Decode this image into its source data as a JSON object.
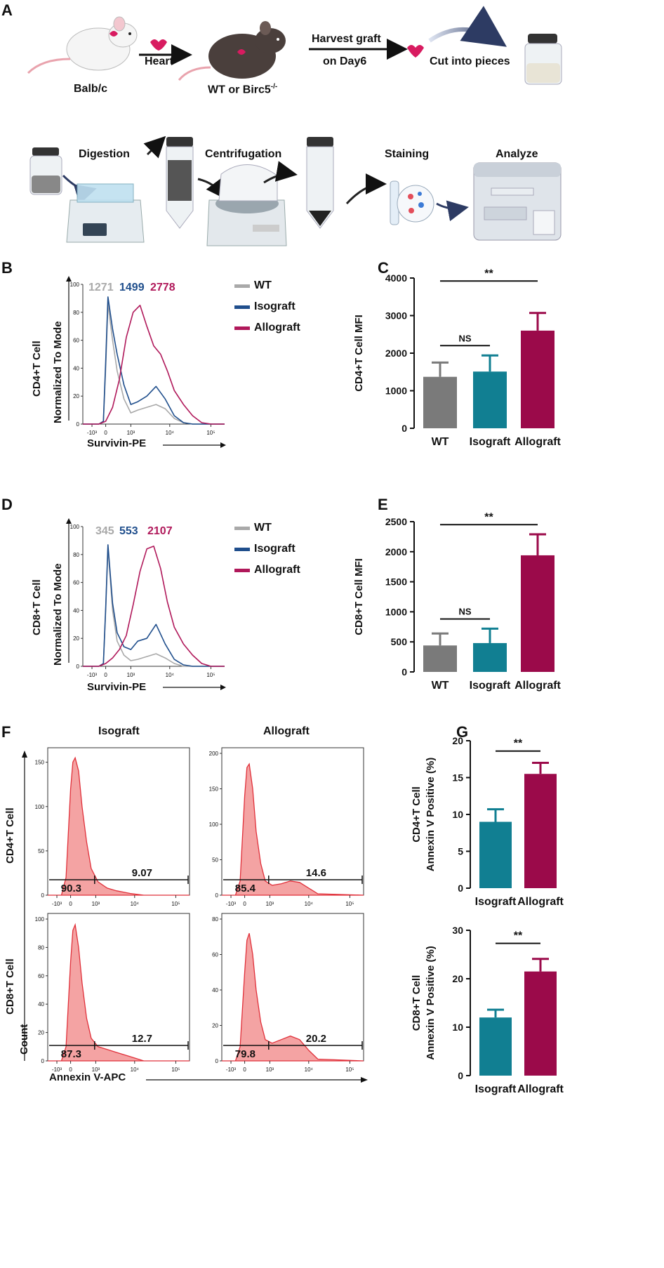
{
  "panel_labels": {
    "A": "A",
    "B": "B",
    "C": "C",
    "D": "D",
    "E": "E",
    "F": "F",
    "G": "G"
  },
  "workflow": {
    "balbc": "Balb/c",
    "heart": "Heart",
    "recipient": "WT or Birc5",
    "recipient_sup": "-/-",
    "harvest_line1": "Harvest graft",
    "harvest_line2": "on Day6",
    "cut": "Cut into pieces",
    "digestion": "Digestion",
    "centrifugation": "Centrifugation",
    "staining": "Staining",
    "analyze": "Analyze"
  },
  "colors": {
    "wt": "#a9a9a9",
    "isograft": "#1f4e8c",
    "allograft": "#b0185a",
    "bar_wt": "#7a7a7a",
    "bar_iso": "#117f92",
    "bar_allo": "#9b0a4a",
    "hist_fill": "#f4a3a3",
    "hist_line": "#e0303a"
  },
  "panel_b": {
    "ylabel_cell": "CD4+T Cell",
    "ylabel": "Normalized To Mode",
    "xlabel": "Survivin-PE",
    "mfi": {
      "wt": "1271",
      "iso": "1499",
      "allo": "2778"
    },
    "legend": {
      "wt": "WT",
      "iso": "Isograft",
      "allo": "Allograft"
    }
  },
  "panel_d": {
    "ylabel_cell": "CD8+T Cell",
    "ylabel": "Normalized To Mode",
    "xlabel": "Survivin-PE",
    "mfi": {
      "wt": "345",
      "iso": "553",
      "allo": "2107"
    },
    "legend": {
      "wt": "WT",
      "iso": "Isograft",
      "allo": "Allograft"
    }
  },
  "panel_f": {
    "col_iso": "Isograft",
    "col_allo": "Allograft",
    "row_cd4": "CD4+T Cell",
    "row_cd8": "CD8+T Cell",
    "ylabel": "Count",
    "xlabel": "Annexin V-APC",
    "gates": {
      "cd4_iso": [
        "90.3",
        "9.07"
      ],
      "cd4_allo": [
        "85.4",
        "14.6"
      ],
      "cd8_iso": [
        "87.3",
        "12.7"
      ],
      "cd8_allo": [
        "79.8",
        "20.2"
      ]
    }
  },
  "chart_data": [
    {
      "id": "B",
      "type": "line",
      "title": "",
      "xlabel": "Survivin-PE",
      "ylabel": "Normalized To Mode",
      "y_ticks": [
        "0",
        "20",
        "40",
        "60",
        "80",
        "100"
      ],
      "x_ticks": [
        "-10³",
        "0",
        "10³",
        "10⁴",
        "10⁵"
      ],
      "x_range": [
        -1,
        5.2
      ],
      "ylim": [
        0,
        100
      ],
      "series": [
        {
          "name": "WT",
          "x": [
            -1,
            -0.3,
            -0.1,
            0,
            0.1,
            0.3,
            0.5,
            0.8,
            1.1,
            1.4,
            1.8,
            2.2,
            2.6,
            3.0,
            3.4,
            3.8,
            4.2,
            5.2
          ],
          "values": [
            0,
            0,
            2,
            40,
            86,
            60,
            38,
            18,
            8,
            10,
            12,
            14,
            11,
            4,
            1,
            0,
            0,
            0
          ]
        },
        {
          "name": "Isograft",
          "x": [
            -1,
            -0.3,
            -0.1,
            0,
            0.1,
            0.3,
            0.5,
            0.8,
            1.1,
            1.4,
            1.8,
            2.2,
            2.6,
            3.0,
            3.4,
            3.8,
            4.2,
            5.2
          ],
          "values": [
            0,
            0,
            2,
            45,
            91,
            68,
            50,
            28,
            14,
            16,
            20,
            27,
            18,
            6,
            1,
            0,
            0,
            0
          ]
        },
        {
          "name": "Allograft",
          "x": [
            -1,
            -0.3,
            0,
            0.3,
            0.6,
            0.9,
            1.2,
            1.5,
            1.8,
            2.1,
            2.4,
            2.7,
            3.0,
            3.4,
            3.8,
            4.2,
            4.6,
            5.2
          ],
          "values": [
            0,
            0,
            2,
            12,
            32,
            62,
            80,
            85,
            70,
            56,
            50,
            38,
            24,
            14,
            6,
            1,
            0,
            0
          ]
        }
      ]
    },
    {
      "id": "C",
      "type": "bar",
      "title": "",
      "xlabel": "",
      "ylabel": "CD4+T Cell MFI",
      "categories": [
        "WT",
        "Isograft",
        "Allograft"
      ],
      "values": [
        1370,
        1510,
        2600
      ],
      "errors": [
        380,
        430,
        470
      ],
      "ylim": [
        0,
        4000
      ],
      "y_ticks": [
        "0",
        "1000",
        "2000",
        "3000",
        "4000"
      ],
      "annotations": [
        {
          "from": 0,
          "to": 1,
          "label": "NS",
          "y": 2200
        },
        {
          "from": 0,
          "to": 2,
          "label": "**",
          "y": 3920
        }
      ]
    },
    {
      "id": "D",
      "type": "line",
      "title": "",
      "xlabel": "Survivin-PE",
      "ylabel": "Normalized To Mode",
      "y_ticks": [
        "0",
        "20",
        "40",
        "60",
        "80",
        "100"
      ],
      "x_ticks": [
        "-10³",
        "0",
        "10³",
        "10⁴",
        "10⁵"
      ],
      "x_range": [
        -1,
        5.2
      ],
      "ylim": [
        0,
        100
      ],
      "series": [
        {
          "name": "WT",
          "x": [
            -1,
            -0.3,
            -0.1,
            0,
            0.1,
            0.3,
            0.5,
            0.8,
            1.1,
            1.4,
            1.8,
            2.2,
            2.6,
            3.0,
            3.4,
            3.8,
            5.2
          ],
          "values": [
            0,
            0,
            2,
            40,
            85,
            40,
            18,
            8,
            4,
            5,
            7,
            9,
            6,
            2,
            0,
            0,
            0
          ]
        },
        {
          "name": "Isograft",
          "x": [
            -1,
            -0.3,
            -0.1,
            0,
            0.1,
            0.3,
            0.5,
            0.8,
            1.1,
            1.4,
            1.8,
            2.2,
            2.6,
            3.0,
            3.4,
            3.8,
            5.2
          ],
          "values": [
            0,
            0,
            2,
            42,
            87,
            45,
            24,
            14,
            12,
            18,
            20,
            30,
            16,
            5,
            1,
            0,
            0
          ]
        },
        {
          "name": "Allograft",
          "x": [
            -1,
            -0.3,
            0,
            0.3,
            0.6,
            0.9,
            1.2,
            1.5,
            1.8,
            2.1,
            2.4,
            2.7,
            3.0,
            3.4,
            3.8,
            4.2,
            4.6,
            5.2
          ],
          "values": [
            0,
            0,
            2,
            6,
            12,
            22,
            44,
            68,
            84,
            86,
            70,
            46,
            28,
            16,
            8,
            2,
            0,
            0
          ]
        }
      ]
    },
    {
      "id": "E",
      "type": "bar",
      "title": "",
      "xlabel": "",
      "ylabel": "CD8+T Cell MFI",
      "categories": [
        "WT",
        "Isograft",
        "Allograft"
      ],
      "values": [
        440,
        480,
        1940
      ],
      "errors": [
        200,
        240,
        350
      ],
      "ylim": [
        0,
        2500
      ],
      "y_ticks": [
        "0",
        "500",
        "1000",
        "1500",
        "2000",
        "2500"
      ],
      "annotations": [
        {
          "from": 0,
          "to": 1,
          "label": "NS",
          "y": 880
        },
        {
          "from": 0,
          "to": 2,
          "label": "**",
          "y": 2450
        }
      ]
    },
    {
      "id": "F",
      "type": "area",
      "title": "",
      "xlabel": "Annexin V-APC",
      "ylabel": "Count",
      "x_ticks": [
        "-10³",
        "0",
        "10³",
        "10⁴",
        "10⁵"
      ],
      "x_range": [
        -1,
        5.2
      ],
      "plots": [
        {
          "name": "CD4+T Cell Isograft",
          "ylim": [
            0,
            160
          ],
          "y_ticks": [
            "0",
            "50",
            "100",
            "150"
          ],
          "x": [
            -1,
            -0.4,
            -0.2,
            0,
            0.1,
            0.2,
            0.35,
            0.5,
            0.7,
            0.9,
            1.2,
            1.6,
            2.0,
            2.6,
            3.2,
            5.2
          ],
          "values": [
            0,
            0,
            20,
            120,
            150,
            155,
            140,
            100,
            60,
            30,
            15,
            8,
            5,
            2,
            0,
            0
          ]
        },
        {
          "name": "CD4+T Cell Allograft",
          "ylim": [
            0,
            200
          ],
          "y_ticks": [
            "0",
            "50",
            "100",
            "150",
            "200"
          ],
          "x": [
            -1,
            -0.4,
            -0.2,
            0,
            0.1,
            0.2,
            0.35,
            0.5,
            0.7,
            0.9,
            1.2,
            1.6,
            2.0,
            2.4,
            2.8,
            3.2,
            5.2
          ],
          "values": [
            0,
            0,
            20,
            140,
            180,
            185,
            150,
            90,
            45,
            20,
            14,
            16,
            20,
            18,
            10,
            2,
            0
          ]
        },
        {
          "name": "CD8+T Cell Isograft",
          "ylim": [
            0,
            100
          ],
          "y_ticks": [
            "0",
            "20",
            "40",
            "60",
            "80",
            "100"
          ],
          "x": [
            -1,
            -0.4,
            -0.2,
            0,
            0.1,
            0.2,
            0.35,
            0.5,
            0.7,
            0.9,
            1.2,
            1.6,
            2.0,
            2.6,
            3.2,
            5.2
          ],
          "values": [
            0,
            0,
            10,
            70,
            92,
            96,
            80,
            55,
            30,
            16,
            10,
            8,
            6,
            3,
            0,
            0
          ]
        },
        {
          "name": "CD8+T Cell Allograft",
          "ylim": [
            0,
            80
          ],
          "y_ticks": [
            "0",
            "20",
            "40",
            "60",
            "80"
          ],
          "x": [
            -1,
            -0.4,
            -0.2,
            0,
            0.1,
            0.2,
            0.35,
            0.5,
            0.7,
            0.9,
            1.2,
            1.6,
            2.0,
            2.4,
            2.8,
            3.2,
            5.2
          ],
          "values": [
            0,
            0,
            8,
            50,
            68,
            72,
            60,
            40,
            22,
            12,
            10,
            12,
            14,
            12,
            6,
            1,
            0
          ]
        }
      ]
    },
    {
      "id": "G1",
      "type": "bar",
      "title": "",
      "xlabel": "",
      "ylabel": "CD4+T Cell Annexin V Positive (%)",
      "categories": [
        "Isograft",
        "Allograft"
      ],
      "values": [
        9.0,
        15.5
      ],
      "errors": [
        1.7,
        1.5
      ],
      "ylim": [
        0,
        20
      ],
      "y_ticks": [
        "0",
        "5",
        "10",
        "15",
        "20"
      ],
      "annotations": [
        {
          "from": 0,
          "to": 1,
          "label": "**",
          "y": 18.6
        }
      ]
    },
    {
      "id": "G2",
      "type": "bar",
      "title": "",
      "xlabel": "",
      "ylabel": "CD8+T Cell Annexin V Positive (%)",
      "categories": [
        "Isograft",
        "Allograft"
      ],
      "values": [
        12.0,
        21.5
      ],
      "errors": [
        1.6,
        2.6
      ],
      "ylim": [
        0,
        30
      ],
      "y_ticks": [
        "0",
        "10",
        "20",
        "30"
      ],
      "annotations": [
        {
          "from": 0,
          "to": 1,
          "label": "**",
          "y": 27.3
        }
      ]
    }
  ]
}
